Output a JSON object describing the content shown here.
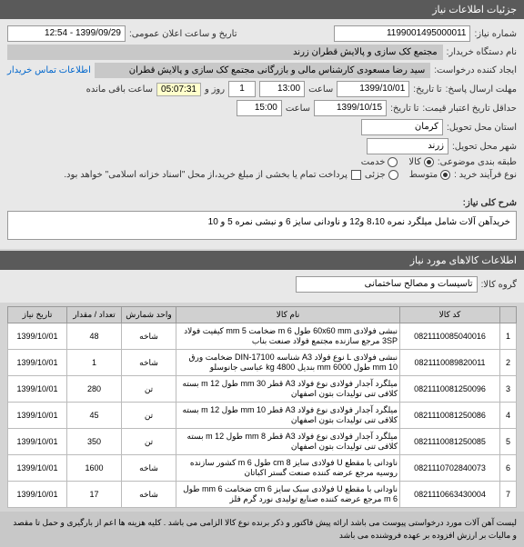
{
  "header": {
    "title": "جزئیات اطلاعات نیاز"
  },
  "form": {
    "need_no_label": "شماره نیاز:",
    "need_no": "1199001495000011",
    "announce_label": "تاریخ و ساعت اعلان عمومی:",
    "announce": "1399/09/29 - 12:54",
    "buyer_org_label": "نام دستگاه خریدار:",
    "buyer_org": "مجتمع کک سازی و پالایش قطران زرند",
    "creator_label": "ایجاد کننده درخواست:",
    "creator": "سید رضا مسعودی کارشناس مالی و بازرگانی مجتمع کک سازی و پالایش قطران",
    "contact_link": "اطلاعات تماس خریدار",
    "deadline_label": "مهلت ارسال پاسخ:",
    "to_date_label": "تا تاریخ:",
    "date1": "1399/10/01",
    "time_label": "ساعت",
    "time1": "13:00",
    "count1": "1",
    "days_label": "روز و",
    "timer": "05:07:31",
    "remain_label": "ساعت باقی مانده",
    "min_valid_label": "حداقل تاریخ اعتبار قیمت:",
    "date2": "1399/10/15",
    "time2": "15:00",
    "delivery_state_label": "استان محل تحویل:",
    "delivery_state": "کرمان",
    "delivery_city_label": "شهر محل تحویل:",
    "delivery_city": "زرند",
    "topic_label": "طبقه بندی موضوعی:",
    "goods_label": "کالا",
    "service_label": "خدمت",
    "process_label": "نوع فرآیند خرید :",
    "process_opt1": "متوسط",
    "process_opt2": "جزئی",
    "note": "پرداخت تمام یا بخشی از مبلغ خرید،از محل \"اسناد خزانه اسلامی\" خواهد بود."
  },
  "desc": {
    "title_label": "شرح کلی نیاز:",
    "text": "خریدآهن آلات شامل میلگرد نمره 8،10 و12 و ناودانی سایز 6 و نبشی نمره 5 و 10"
  },
  "goods_section": {
    "title": "اطلاعات کالاهای مورد نیاز",
    "group_label": "گروه کالا:",
    "group": "تاسیسات و مصالح ساختمانی"
  },
  "table": {
    "headers": [
      "",
      "کد کالا",
      "نام کالا",
      "واحد شمارش",
      "تعداد / مقدار",
      "تاریخ نیاز"
    ],
    "rows": [
      [
        "1",
        "0821110085040016",
        "نبشی فولادی 60x60 mm طول m 6 ضخامت mm 5 کیفیت فولاد 3SP مرجع سازنده مجتمع فولاد صنعت بناب",
        "شاخه",
        "48",
        "1399/10/01"
      ],
      [
        "2",
        "0821110089820011",
        "نبشی فولادی L نوع فولاد A3 شناسه DIN-17100 ضخامت ورق mm 10 طول mm 6000 بندیل kg 4800 عباسی جانوسلو",
        "شاخه",
        "1",
        "1399/10/01"
      ],
      [
        "3",
        "0821110081250096",
        "میلگرد آجدار فولادی نوع فولاد A3 قطر mm 30 طول m 12 بسته کلافی تنی تولیدات بتون اصفهان",
        "تن",
        "280",
        "1399/10/01"
      ],
      [
        "4",
        "0821110081250086",
        "میلگرد آجدار فولادی نوع فولاد A3 قطر mm 10 طول m 12 بسته کلافی تنی تولیدات بتون اصفهان",
        "تن",
        "45",
        "1399/10/01"
      ],
      [
        "5",
        "0821110081250085",
        "میلگرد آجدار فولادی نوع فولاد A3 قطر mm 8 طول m 12 بسته کلافی تنی تولیدات بتون اصفهان",
        "تن",
        "350",
        "1399/10/01"
      ],
      [
        "6",
        "0821110702840073",
        "ناودانی با مقطع U فولادی سایز cm 8 طول m 6 کشور سازنده روسیه مرجع عرضه کننده صنعت گستر اکباتان",
        "شاخه",
        "1600",
        "1399/10/01"
      ],
      [
        "7",
        "0821110663430004",
        "ناودانی با مقطع U فولادی سبک سایز cm 6 ضخامت mm 6 طول m 6 مرجع عرضه کننده صنایع تولیدی نورد گرم فلز",
        "شاخه",
        "17",
        "1399/10/01"
      ]
    ]
  },
  "footer": {
    "text": "لیست آهن آلات مورد درخواستی پیوست می باشد ارائه پیش فاکتور و ذکر برنده نوع کالا الزامی می باشد . کلیه هزینه ها اعم از بارگیری و حمل تا مقصد و مالیات بر ارزش افزوده بر عهده فروشنده می باشد"
  }
}
